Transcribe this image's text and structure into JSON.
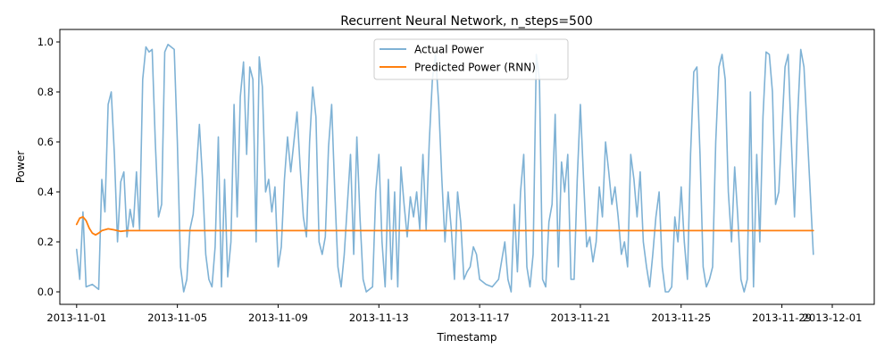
{
  "chart_data": {
    "type": "line",
    "title": "Recurrent Neural Network, n_steps=500",
    "xlabel": "Timestamp",
    "ylabel": "Power",
    "x_range": [
      "2013-11-01",
      "2013-12-01"
    ],
    "xlim": [
      "2013-10-31T08:00",
      "2013-12-02T16:00"
    ],
    "ylim": [
      -0.05,
      1.05
    ],
    "x_ticks": [
      "2013-11-01",
      "2013-11-05",
      "2013-11-09",
      "2013-11-13",
      "2013-11-17",
      "2013-11-21",
      "2013-11-25",
      "2013-11-29",
      "2013-12-01"
    ],
    "x_tick_labels": [
      "2013-11-01",
      "2013-11-05",
      "2013-11-09",
      "2013-11-13",
      "2013-11-17",
      "2013-11-21",
      "2013-11-25",
      "2013-11-29",
      "2013-12-01"
    ],
    "y_ticks": [
      0.0,
      0.2,
      0.4,
      0.6,
      0.8,
      1.0
    ],
    "y_tick_labels": [
      "0.0",
      "0.2",
      "0.4",
      "0.6",
      "0.8",
      "1.0"
    ],
    "grid": false,
    "legend_position": "top-center",
    "series": [
      {
        "name": "Actual Power",
        "color": "#7fb2d5",
        "points": [
          [
            "2013-11-01",
            0.17
          ],
          [
            "2013-11-01T03:00",
            0.05
          ],
          [
            "2013-11-01T06:00",
            0.32
          ],
          [
            "2013-11-01T09:00",
            0.02
          ],
          [
            "2013-11-01T15:00",
            0.03
          ],
          [
            "2013-11-01T21:00",
            0.01
          ],
          [
            "2013-11-02",
            0.45
          ],
          [
            "2013-11-02T03:00",
            0.32
          ],
          [
            "2013-11-02T06:00",
            0.75
          ],
          [
            "2013-11-02T09:00",
            0.8
          ],
          [
            "2013-11-02T12:00",
            0.55
          ],
          [
            "2013-11-02T15:00",
            0.2
          ],
          [
            "2013-11-02T18:00",
            0.44
          ],
          [
            "2013-11-02T21:00",
            0.48
          ],
          [
            "2013-11-03",
            0.22
          ],
          [
            "2013-11-03T03:00",
            0.33
          ],
          [
            "2013-11-03T06:00",
            0.26
          ],
          [
            "2013-11-03T09:00",
            0.48
          ],
          [
            "2013-11-03T12:00",
            0.25
          ],
          [
            "2013-11-03T15:00",
            0.85
          ],
          [
            "2013-11-03T18:00",
            0.98
          ],
          [
            "2013-11-03T21:00",
            0.96
          ],
          [
            "2013-11-04",
            0.97
          ],
          [
            "2013-11-04T03:00",
            0.6
          ],
          [
            "2013-11-04T06:00",
            0.3
          ],
          [
            "2013-11-04T09:00",
            0.35
          ],
          [
            "2013-11-04T12:00",
            0.96
          ],
          [
            "2013-11-04T15:00",
            0.99
          ],
          [
            "2013-11-04T21:00",
            0.97
          ],
          [
            "2013-11-05",
            0.6
          ],
          [
            "2013-11-05T03:00",
            0.1
          ],
          [
            "2013-11-05T06:00",
            0.0
          ],
          [
            "2013-11-05T09:00",
            0.05
          ],
          [
            "2013-11-05T12:00",
            0.25
          ],
          [
            "2013-11-05T15:00",
            0.31
          ],
          [
            "2013-11-05T18:00",
            0.48
          ],
          [
            "2013-11-05T21:00",
            0.67
          ],
          [
            "2013-11-06",
            0.45
          ],
          [
            "2013-11-06T03:00",
            0.15
          ],
          [
            "2013-11-06T06:00",
            0.05
          ],
          [
            "2013-11-06T09:00",
            0.02
          ],
          [
            "2013-11-06T12:00",
            0.18
          ],
          [
            "2013-11-06T15:00",
            0.62
          ],
          [
            "2013-11-06T18:00",
            0.02
          ],
          [
            "2013-11-06T21:00",
            0.45
          ],
          [
            "2013-11-07",
            0.06
          ],
          [
            "2013-11-07T03:00",
            0.2
          ],
          [
            "2013-11-07T06:00",
            0.75
          ],
          [
            "2013-11-07T09:00",
            0.3
          ],
          [
            "2013-11-07T12:00",
            0.78
          ],
          [
            "2013-11-07T15:00",
            0.92
          ],
          [
            "2013-11-07T18:00",
            0.55
          ],
          [
            "2013-11-07T21:00",
            0.9
          ],
          [
            "2013-11-08",
            0.85
          ],
          [
            "2013-11-08T03:00",
            0.2
          ],
          [
            "2013-11-08T06:00",
            0.94
          ],
          [
            "2013-11-08T09:00",
            0.82
          ],
          [
            "2013-11-08T12:00",
            0.4
          ],
          [
            "2013-11-08T15:00",
            0.45
          ],
          [
            "2013-11-08T18:00",
            0.32
          ],
          [
            "2013-11-08T21:00",
            0.42
          ],
          [
            "2013-11-09",
            0.1
          ],
          [
            "2013-11-09T03:00",
            0.18
          ],
          [
            "2013-11-09T06:00",
            0.45
          ],
          [
            "2013-11-09T09:00",
            0.62
          ],
          [
            "2013-11-09T12:00",
            0.48
          ],
          [
            "2013-11-09T15:00",
            0.6
          ],
          [
            "2013-11-09T18:00",
            0.72
          ],
          [
            "2013-11-09T21:00",
            0.5
          ],
          [
            "2013-11-10",
            0.3
          ],
          [
            "2013-11-10T03:00",
            0.22
          ],
          [
            "2013-11-10T06:00",
            0.6
          ],
          [
            "2013-11-10T09:00",
            0.82
          ],
          [
            "2013-11-10T12:00",
            0.7
          ],
          [
            "2013-11-10T15:00",
            0.2
          ],
          [
            "2013-11-10T18:00",
            0.15
          ],
          [
            "2013-11-10T21:00",
            0.22
          ],
          [
            "2013-11-11",
            0.58
          ],
          [
            "2013-11-11T03:00",
            0.75
          ],
          [
            "2013-11-11T06:00",
            0.4
          ],
          [
            "2013-11-11T09:00",
            0.1
          ],
          [
            "2013-11-11T12:00",
            0.02
          ],
          [
            "2013-11-11T15:00",
            0.15
          ],
          [
            "2013-11-11T18:00",
            0.35
          ],
          [
            "2013-11-11T21:00",
            0.55
          ],
          [
            "2013-11-12",
            0.15
          ],
          [
            "2013-11-12T03:00",
            0.62
          ],
          [
            "2013-11-12T06:00",
            0.3
          ],
          [
            "2013-11-12T09:00",
            0.05
          ],
          [
            "2013-11-12T12:00",
            0.0
          ],
          [
            "2013-11-12T18:00",
            0.02
          ],
          [
            "2013-11-12T21:00",
            0.4
          ],
          [
            "2013-11-13",
            0.55
          ],
          [
            "2013-11-13T03:00",
            0.2
          ],
          [
            "2013-11-13T06:00",
            0.02
          ],
          [
            "2013-11-13T09:00",
            0.45
          ],
          [
            "2013-11-13T12:00",
            0.05
          ],
          [
            "2013-11-13T15:00",
            0.4
          ],
          [
            "2013-11-13T18:00",
            0.02
          ],
          [
            "2013-11-13T21:00",
            0.5
          ],
          [
            "2013-11-14",
            0.35
          ],
          [
            "2013-11-14T03:00",
            0.22
          ],
          [
            "2013-11-14T06:00",
            0.38
          ],
          [
            "2013-11-14T09:00",
            0.3
          ],
          [
            "2013-11-14T12:00",
            0.4
          ],
          [
            "2013-11-14T15:00",
            0.25
          ],
          [
            "2013-11-14T18:00",
            0.55
          ],
          [
            "2013-11-14T21:00",
            0.25
          ],
          [
            "2013-11-15",
            0.6
          ],
          [
            "2013-11-15T03:00",
            0.85
          ],
          [
            "2013-11-15T06:00",
            0.95
          ],
          [
            "2013-11-15T09:00",
            0.75
          ],
          [
            "2013-11-15T12:00",
            0.45
          ],
          [
            "2013-11-15T15:00",
            0.2
          ],
          [
            "2013-11-15T18:00",
            0.4
          ],
          [
            "2013-11-15T21:00",
            0.25
          ],
          [
            "2013-11-16",
            0.05
          ],
          [
            "2013-11-16T03:00",
            0.4
          ],
          [
            "2013-11-16T06:00",
            0.28
          ],
          [
            "2013-11-16T09:00",
            0.05
          ],
          [
            "2013-11-16T12:00",
            0.08
          ],
          [
            "2013-11-16T15:00",
            0.1
          ],
          [
            "2013-11-16T18:00",
            0.18
          ],
          [
            "2013-11-16T21:00",
            0.15
          ],
          [
            "2013-11-17",
            0.05
          ],
          [
            "2013-11-17T06:00",
            0.03
          ],
          [
            "2013-11-17T12:00",
            0.02
          ],
          [
            "2013-11-17T18:00",
            0.05
          ],
          [
            "2013-11-18",
            0.2
          ],
          [
            "2013-11-18T03:00",
            0.05
          ],
          [
            "2013-11-18T06:00",
            0.0
          ],
          [
            "2013-11-18T09:00",
            0.35
          ],
          [
            "2013-11-18T12:00",
            0.08
          ],
          [
            "2013-11-18T15:00",
            0.4
          ],
          [
            "2013-11-18T18:00",
            0.55
          ],
          [
            "2013-11-18T21:00",
            0.1
          ],
          [
            "2013-11-19",
            0.02
          ],
          [
            "2013-11-19T03:00",
            0.15
          ],
          [
            "2013-11-19T06:00",
            0.95
          ],
          [
            "2013-11-19T09:00",
            0.85
          ],
          [
            "2013-11-19T12:00",
            0.05
          ],
          [
            "2013-11-19T15:00",
            0.02
          ],
          [
            "2013-11-19T18:00",
            0.28
          ],
          [
            "2013-11-19T21:00",
            0.35
          ],
          [
            "2013-11-20",
            0.71
          ],
          [
            "2013-11-20T03:00",
            0.1
          ],
          [
            "2013-11-20T06:00",
            0.52
          ],
          [
            "2013-11-20T09:00",
            0.4
          ],
          [
            "2013-11-20T12:00",
            0.55
          ],
          [
            "2013-11-20T15:00",
            0.05
          ],
          [
            "2013-11-20T18:00",
            0.05
          ],
          [
            "2013-11-20T21:00",
            0.45
          ],
          [
            "2013-11-21",
            0.75
          ],
          [
            "2013-11-21T03:00",
            0.45
          ],
          [
            "2013-11-21T06:00",
            0.18
          ],
          [
            "2013-11-21T09:00",
            0.22
          ],
          [
            "2013-11-21T12:00",
            0.12
          ],
          [
            "2013-11-21T15:00",
            0.2
          ],
          [
            "2013-11-21T18:00",
            0.42
          ],
          [
            "2013-11-21T21:00",
            0.3
          ],
          [
            "2013-11-22",
            0.6
          ],
          [
            "2013-11-22T03:00",
            0.48
          ],
          [
            "2013-11-22T06:00",
            0.35
          ],
          [
            "2013-11-22T09:00",
            0.42
          ],
          [
            "2013-11-22T12:00",
            0.3
          ],
          [
            "2013-11-22T15:00",
            0.15
          ],
          [
            "2013-11-22T18:00",
            0.2
          ],
          [
            "2013-11-22T21:00",
            0.1
          ],
          [
            "2013-11-23",
            0.55
          ],
          [
            "2013-11-23T03:00",
            0.45
          ],
          [
            "2013-11-23T06:00",
            0.3
          ],
          [
            "2013-11-23T09:00",
            0.48
          ],
          [
            "2013-11-23T12:00",
            0.2
          ],
          [
            "2013-11-23T15:00",
            0.1
          ],
          [
            "2013-11-23T18:00",
            0.02
          ],
          [
            "2013-11-23T21:00",
            0.15
          ],
          [
            "2013-11-24",
            0.3
          ],
          [
            "2013-11-24T03:00",
            0.4
          ],
          [
            "2013-11-24T06:00",
            0.1
          ],
          [
            "2013-11-24T09:00",
            0.0
          ],
          [
            "2013-11-24T12:00",
            0.0
          ],
          [
            "2013-11-24T15:00",
            0.02
          ],
          [
            "2013-11-24T18:00",
            0.3
          ],
          [
            "2013-11-24T21:00",
            0.2
          ],
          [
            "2013-11-25",
            0.42
          ],
          [
            "2013-11-25T03:00",
            0.2
          ],
          [
            "2013-11-25T06:00",
            0.05
          ],
          [
            "2013-11-25T09:00",
            0.55
          ],
          [
            "2013-11-25T12:00",
            0.88
          ],
          [
            "2013-11-25T15:00",
            0.9
          ],
          [
            "2013-11-25T18:00",
            0.55
          ],
          [
            "2013-11-25T21:00",
            0.1
          ],
          [
            "2013-11-26",
            0.02
          ],
          [
            "2013-11-26T03:00",
            0.05
          ],
          [
            "2013-11-26T06:00",
            0.1
          ],
          [
            "2013-11-26T09:00",
            0.6
          ],
          [
            "2013-11-26T12:00",
            0.9
          ],
          [
            "2013-11-26T15:00",
            0.95
          ],
          [
            "2013-11-26T18:00",
            0.85
          ],
          [
            "2013-11-26T21:00",
            0.4
          ],
          [
            "2013-11-27",
            0.2
          ],
          [
            "2013-11-27T03:00",
            0.5
          ],
          [
            "2013-11-27T06:00",
            0.3
          ],
          [
            "2013-11-27T09:00",
            0.05
          ],
          [
            "2013-11-27T12:00",
            0.0
          ],
          [
            "2013-11-27T15:00",
            0.05
          ],
          [
            "2013-11-27T18:00",
            0.8
          ],
          [
            "2013-11-27T21:00",
            0.02
          ],
          [
            "2013-11-28",
            0.55
          ],
          [
            "2013-11-28T03:00",
            0.2
          ],
          [
            "2013-11-28T06:00",
            0.7
          ],
          [
            "2013-11-28T09:00",
            0.96
          ],
          [
            "2013-11-28T12:00",
            0.95
          ],
          [
            "2013-11-28T15:00",
            0.8
          ],
          [
            "2013-11-28T18:00",
            0.35
          ],
          [
            "2013-11-28T21:00",
            0.4
          ],
          [
            "2013-11-29",
            0.65
          ],
          [
            "2013-11-29T03:00",
            0.9
          ],
          [
            "2013-11-29T06:00",
            0.95
          ],
          [
            "2013-11-29T09:00",
            0.6
          ],
          [
            "2013-11-29T12:00",
            0.3
          ],
          [
            "2013-11-29T15:00",
            0.7
          ],
          [
            "2013-11-29T18:00",
            0.97
          ],
          [
            "2013-11-29T21:00",
            0.9
          ],
          [
            "2013-11-30T06:00",
            0.15
          ]
        ]
      },
      {
        "name": "Predicted Power (RNN)",
        "color": "#ff7f0e",
        "points": [
          [
            "2013-11-01",
            0.27
          ],
          [
            "2013-11-01T03:00",
            0.295
          ],
          [
            "2013-11-01T06:00",
            0.3
          ],
          [
            "2013-11-01T09:00",
            0.285
          ],
          [
            "2013-11-01T12:00",
            0.255
          ],
          [
            "2013-11-01T15:00",
            0.235
          ],
          [
            "2013-11-01T18:00",
            0.228
          ],
          [
            "2013-11-01T21:00",
            0.235
          ],
          [
            "2013-11-02",
            0.245
          ],
          [
            "2013-11-02T06:00",
            0.252
          ],
          [
            "2013-11-02T12:00",
            0.248
          ],
          [
            "2013-11-02T18:00",
            0.242
          ],
          [
            "2013-11-03",
            0.245
          ],
          [
            "2013-11-04",
            0.245
          ],
          [
            "2013-11-10",
            0.245
          ],
          [
            "2013-11-20",
            0.245
          ],
          [
            "2013-11-30T06:00",
            0.245
          ]
        ]
      }
    ]
  }
}
